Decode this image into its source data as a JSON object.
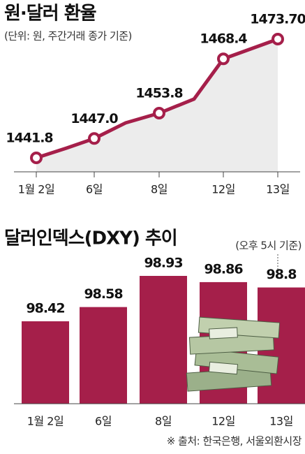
{
  "chart_data": [
    {
      "type": "line",
      "title": "원·달러 환율",
      "subtitle": "(단위: 원, 주간거래 종가 기준)",
      "categories": [
        "1월 2일",
        null,
        "6일",
        null,
        "8일",
        null,
        "12일",
        "13일"
      ],
      "values": [
        1441.8,
        1444.4,
        1447.0,
        1451.2,
        1453.8,
        1457.6,
        1468.4,
        1473.7
      ],
      "value_labels": [
        "1441.8",
        null,
        "1447.0",
        null,
        "1453.8",
        null,
        "1468.4",
        "1473.70"
      ],
      "color": "#a51f4a"
    },
    {
      "type": "bar",
      "title": "달러인덱스(DXY) 추이",
      "note": "(오후 5시 기준)",
      "categories": [
        "1월 2일",
        "6일",
        "8일",
        "12일",
        "13일"
      ],
      "values": [
        98.42,
        98.58,
        98.93,
        98.86,
        98.8
      ],
      "color": "#a51f4a",
      "source": "※ 출처: 한국은행, 서울외환시장"
    }
  ]
}
